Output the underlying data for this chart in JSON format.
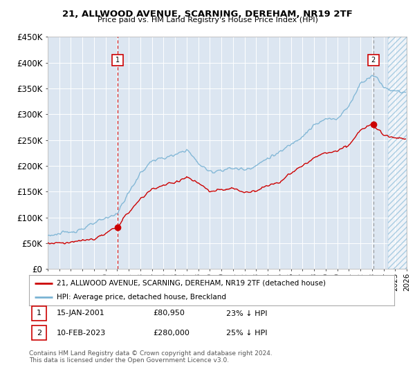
{
  "title": "21, ALLWOOD AVENUE, SCARNING, DEREHAM, NR19 2TF",
  "subtitle": "Price paid vs. HM Land Registry's House Price Index (HPI)",
  "background_color": "#ffffff",
  "plot_bg_color": "#dce6f1",
  "grid_color": "#ffffff",
  "hpi_color": "#7ab3d4",
  "price_color": "#cc0000",
  "ylim": [
    0,
    450000
  ],
  "yticks": [
    0,
    50000,
    100000,
    150000,
    200000,
    250000,
    300000,
    350000,
    400000,
    450000
  ],
  "x_start_year": 1995,
  "x_end_year": 2026,
  "legend_line1": "21, ALLWOOD AVENUE, SCARNING, DEREHAM, NR19 2TF (detached house)",
  "legend_line2": "HPI: Average price, detached house, Breckland",
  "footer": "Contains HM Land Registry data © Crown copyright and database right 2024.\nThis data is licensed under the Open Government Licence v3.0.",
  "sale1_year": 2001.04,
  "sale1_price": 80950,
  "sale2_year": 2023.12,
  "sale2_price": 280000,
  "sale1_label": "1",
  "sale2_label": "2",
  "ann1_date": "15-JAN-2001",
  "ann1_price": "£80,950",
  "ann1_hpi": "23% ↓ HPI",
  "ann2_date": "10-FEB-2023",
  "ann2_price": "£280,000",
  "ann2_hpi": "25% ↓ HPI"
}
